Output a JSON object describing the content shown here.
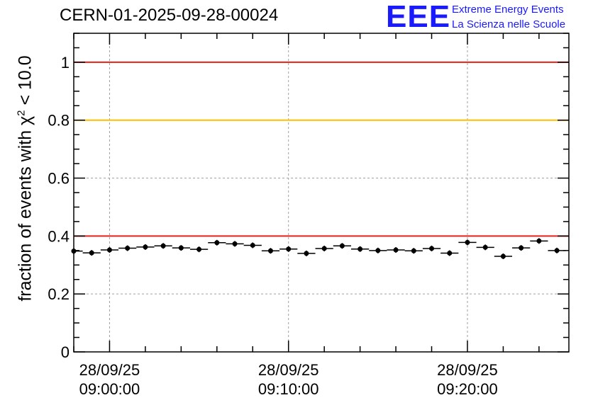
{
  "title": "CERN-01-2025-09-28-00024",
  "logo": {
    "mark": "EEE",
    "line1": "Extreme Energy Events",
    "line2": "La Scienza nelle Scuole"
  },
  "y_axis_label": {
    "prefix": "fraction of events with ",
    "chi": "χ",
    "exponent": "2",
    "suffix": " < 10.0"
  },
  "colors": {
    "red_line": "#e8201c",
    "yellow_line": "#ffc000",
    "points": "#000000",
    "grid": "#a0a0a0",
    "logo": "#1a1aff"
  },
  "chart_data": {
    "type": "scatter",
    "title": "CERN-01-2025-09-28-00024",
    "ylabel": "fraction of events with χ² < 10.0",
    "xlabel": "",
    "ylim": [
      0,
      1.1
    ],
    "xlim_minutes": [
      -2,
      25.67
    ],
    "y_ticks": [
      0,
      0.2,
      0.4,
      0.6,
      0.8,
      1
    ],
    "y_tick_labels": [
      "0",
      "0.2",
      "0.4",
      "0.6",
      "0.8",
      "1"
    ],
    "x_ticks": [
      {
        "minute": 0,
        "date": "28/09/25",
        "time": "09:00:00"
      },
      {
        "minute": 10,
        "date": "28/09/25",
        "time": "09:10:00"
      },
      {
        "minute": 20,
        "date": "28/09/25",
        "time": "09:20:00"
      }
    ],
    "reference_lines": [
      {
        "y": 1.0,
        "color": "red"
      },
      {
        "y": 0.8,
        "color": "yellow"
      },
      {
        "y": 0.4,
        "color": "red"
      }
    ],
    "bin_width_minutes": 1,
    "series": [
      {
        "name": "fraction",
        "x_minutes": [
          -2,
          -1,
          0,
          1,
          2,
          3,
          4,
          5,
          6,
          7,
          8,
          9,
          10,
          11,
          12,
          13,
          14,
          15,
          16,
          17,
          18,
          19,
          20,
          21,
          22,
          23,
          24,
          25
        ],
        "values": [
          0.348,
          0.342,
          0.352,
          0.358,
          0.362,
          0.366,
          0.359,
          0.354,
          0.377,
          0.373,
          0.368,
          0.349,
          0.355,
          0.34,
          0.357,
          0.366,
          0.355,
          0.35,
          0.352,
          0.349,
          0.357,
          0.341,
          0.378,
          0.361,
          0.33,
          0.359,
          0.383,
          0.35
        ]
      }
    ]
  }
}
